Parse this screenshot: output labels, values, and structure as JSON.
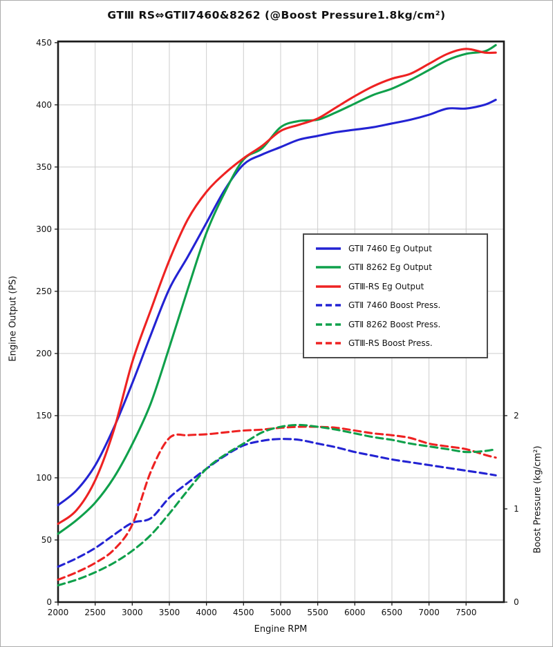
{
  "window": {
    "background": "#ffffff",
    "border_color": "#ababab"
  },
  "chart_data": {
    "type": "line",
    "title": "GTⅢ RS⇔GTⅡ7460&8262 (@Boost Pressure1.8kg/cm²)",
    "xlabel": "Engine RPM",
    "ylabel_left": "Engine Output (PS)",
    "ylabel_right": "Boost Pressure (kg/cm²)",
    "xlim": [
      2000,
      8010
    ],
    "ylim_left": [
      0,
      451
    ],
    "ylim_right": [
      0,
      2
    ],
    "right_axis_ps_per_unit": 75,
    "grid": true,
    "grid_color": "#cdcdcd",
    "frame_color": "#1a1a1a",
    "tick_color": "#1a1a1a",
    "xticks": [
      2000,
      2500,
      3000,
      3500,
      4000,
      4500,
      5000,
      5500,
      6000,
      6500,
      7000,
      7500
    ],
    "yticks_left": [
      0,
      50,
      100,
      150,
      200,
      250,
      300,
      350,
      400,
      450
    ],
    "yticks_right": [
      0,
      1,
      2
    ],
    "legend_position": "middle-right",
    "x_rpm": [
      2000,
      2250,
      2500,
      2750,
      3000,
      3250,
      3500,
      3750,
      4000,
      4250,
      4500,
      4750,
      5000,
      5250,
      5500,
      5750,
      6000,
      6250,
      6500,
      6750,
      7000,
      7250,
      7500,
      7750,
      7900
    ],
    "series": [
      {
        "name": "GTⅡ 7460 Eg Output",
        "color": "#2323d3",
        "style": "solid",
        "axis": "left",
        "values": [
          78,
          90,
          110,
          140,
          176,
          215,
          252,
          278,
          305,
          332,
          352,
          360,
          366,
          372,
          375,
          378,
          380,
          382,
          385,
          388,
          392,
          397,
          397,
          400,
          404
        ]
      },
      {
        "name": "GTⅡ 8262 Eg Output",
        "color": "#0fa04b",
        "style": "solid",
        "axis": "left",
        "values": [
          55,
          66,
          80,
          100,
          127,
          160,
          205,
          252,
          297,
          330,
          356,
          365,
          382,
          387,
          388,
          394,
          401,
          408,
          413,
          420,
          428,
          436,
          441,
          443,
          448
        ]
      },
      {
        "name": "GTⅢ-RS Eg Output",
        "color": "#ee2222",
        "style": "solid",
        "axis": "left",
        "values": [
          63,
          74,
          98,
          138,
          193,
          235,
          275,
          308,
          330,
          345,
          357,
          367,
          379,
          384,
          389,
          398,
          407,
          415,
          421,
          425,
          433,
          441,
          445,
          442,
          442
        ]
      },
      {
        "name": "GTⅡ 7460 Boost Press.",
        "color": "#2323d3",
        "style": "dashed",
        "axis": "right",
        "values": [
          0.38,
          0.47,
          0.58,
          0.72,
          0.85,
          0.9,
          1.12,
          1.28,
          1.43,
          1.57,
          1.68,
          1.73,
          1.75,
          1.74,
          1.7,
          1.66,
          1.61,
          1.57,
          1.53,
          1.5,
          1.47,
          1.44,
          1.41,
          1.38,
          1.36
        ]
      },
      {
        "name": "GTⅡ 8262 Boost Press.",
        "color": "#0fa04b",
        "style": "dashed",
        "axis": "right",
        "values": [
          0.18,
          0.24,
          0.32,
          0.42,
          0.55,
          0.72,
          0.95,
          1.2,
          1.43,
          1.58,
          1.7,
          1.82,
          1.88,
          1.9,
          1.88,
          1.85,
          1.81,
          1.77,
          1.74,
          1.7,
          1.67,
          1.64,
          1.61,
          1.62,
          1.64
        ]
      },
      {
        "name": "GTⅢ-RS Boost Press.",
        "color": "#ee2222",
        "style": "dashed",
        "axis": "right",
        "values": [
          0.24,
          0.32,
          0.42,
          0.56,
          0.83,
          1.4,
          1.76,
          1.79,
          1.8,
          1.82,
          1.84,
          1.85,
          1.87,
          1.88,
          1.88,
          1.87,
          1.84,
          1.81,
          1.79,
          1.76,
          1.7,
          1.67,
          1.64,
          1.58,
          1.55
        ]
      }
    ]
  }
}
